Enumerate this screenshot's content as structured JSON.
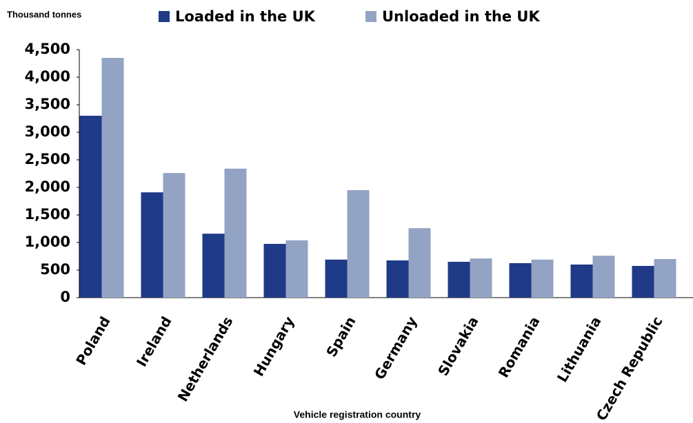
{
  "chart_data": {
    "type": "bar",
    "y_axis_label": "Thousand tonnes",
    "x_axis_label": "Vehicle registration country",
    "categories": [
      "Poland",
      "Ireland",
      "Netherlands",
      "Hungary",
      "Spain",
      "Germany",
      "Slovakia",
      "Romania",
      "Lithuania",
      "Czech Republic"
    ],
    "series": [
      {
        "name": "Loaded in the UK",
        "color": "#1f3a86",
        "values": [
          3300,
          1910,
          1160,
          975,
          690,
          675,
          650,
          625,
          600,
          575
        ]
      },
      {
        "name": "Unloaded in the UK",
        "color": "#93a3c4",
        "values": [
          4350,
          2260,
          2340,
          1040,
          1950,
          1260,
          710,
          690,
          760,
          700
        ]
      }
    ],
    "ylim": [
      0,
      4500
    ],
    "yticks": [
      0,
      500,
      {
        "value": 1000,
        "label": "1,000"
      },
      {
        "value": 1500,
        "label": "1,500"
      },
      {
        "value": 2000,
        "label": "2,000"
      },
      {
        "value": 2500,
        "label": "2,500"
      },
      {
        "value": 3000,
        "label": "3,000"
      },
      {
        "value": 3500,
        "label": "3,500"
      },
      {
        "value": 4000,
        "label": "4,000"
      },
      {
        "value": 4500,
        "label": "4,500"
      }
    ],
    "grid": false,
    "legend": "top"
  }
}
